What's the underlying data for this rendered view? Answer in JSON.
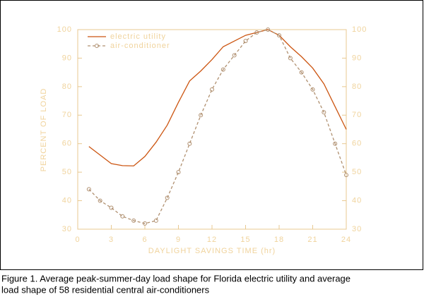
{
  "chart_data": {
    "type": "line",
    "xlabel": "DAYLIGHT SAVINGS TIME (hr)",
    "ylabel": "PERCENT OF LOAD",
    "x": [
      1,
      2,
      3,
      4,
      5,
      6,
      7,
      8,
      9,
      10,
      11,
      12,
      13,
      14,
      15,
      16,
      17,
      18,
      19,
      20,
      21,
      22,
      23,
      24
    ],
    "series": [
      {
        "name": "electric utility",
        "color": "#cc5511",
        "dashed": false,
        "markers": false,
        "values": [
          59,
          56,
          53,
          52.3,
          52.2,
          55.5,
          60.5,
          66.5,
          74.5,
          82,
          85.5,
          89.5,
          94,
          96,
          98,
          99,
          100,
          98,
          94,
          90.5,
          86.5,
          81,
          73,
          65
        ]
      },
      {
        "name": "air-conditioner",
        "color": "#b09070",
        "dashed": true,
        "markers": true,
        "values": [
          44,
          40,
          37.5,
          34.5,
          33,
          32,
          33,
          41,
          50,
          60,
          70,
          79,
          86,
          91,
          96,
          99,
          100,
          98,
          90,
          85,
          79,
          71,
          60,
          49
        ]
      }
    ],
    "xlim": [
      0,
      24
    ],
    "xticks": [
      0,
      3,
      6,
      9,
      12,
      15,
      18,
      21,
      24
    ],
    "ylim": [
      30,
      100
    ],
    "yticks": [
      30,
      40,
      50,
      60,
      70,
      80,
      90,
      100
    ],
    "y2lim": [
      30,
      100
    ],
    "y2ticks": [
      30,
      40,
      50,
      60,
      70,
      80,
      90,
      100
    ],
    "legend": "upper left",
    "grid": false
  },
  "caption": [
    "Figure 1.  Average peak-summer-day load shape for Florida electric utility and average",
    "load shape of 58 residential central air-conditioners"
  ]
}
